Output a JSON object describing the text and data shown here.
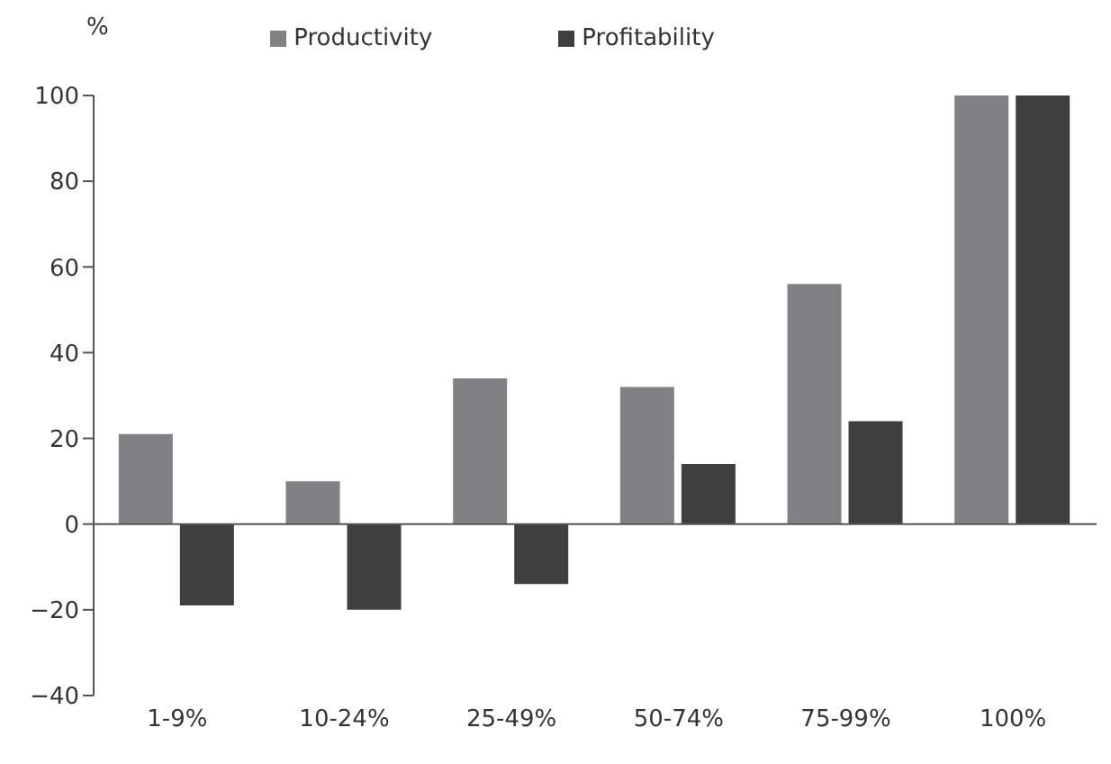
{
  "chart_data": {
    "type": "bar",
    "ylabel": "%",
    "categories": [
      "1-9%",
      "10-24%",
      "25-49%",
      "50-74%",
      "75-99%",
      "100%"
    ],
    "series": [
      {
        "name": "Productivity",
        "color": "#808184",
        "values": [
          21,
          10,
          34,
          32,
          56,
          100
        ]
      },
      {
        "name": "Profitability",
        "color": "#3f3f3f",
        "values": [
          -19,
          -20,
          -14,
          14,
          24,
          100
        ]
      }
    ],
    "ylim": [
      -40,
      100
    ],
    "yticks": [
      -40,
      -20,
      0,
      20,
      40,
      60,
      80,
      100
    ],
    "legend": "top"
  }
}
